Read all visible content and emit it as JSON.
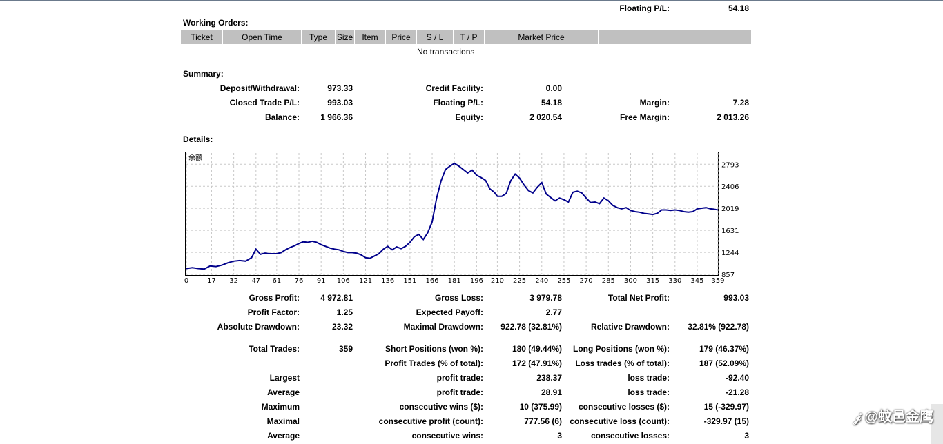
{
  "top_status": {
    "label": "Floating P/L:",
    "value": "54.18"
  },
  "working_orders": {
    "title": "Working Orders:",
    "columns": [
      "Ticket",
      "Open Time",
      "Type",
      "Size",
      "Item",
      "Price",
      "S / L",
      "T / P",
      "Market Price",
      ""
    ],
    "empty_text": "No transactions"
  },
  "summary": {
    "title": "Summary:",
    "deposit_label": "Deposit/Withdrawal:",
    "deposit_value": "973.33",
    "credit_label": "Credit Facility:",
    "credit_value": "0.00",
    "closed_pl_label": "Closed Trade P/L:",
    "closed_pl_value": "993.03",
    "floating_label": "Floating P/L:",
    "floating_value": "54.18",
    "margin_label": "Margin:",
    "margin_value": "7.28",
    "balance_label": "Balance:",
    "balance_value": "1 966.36",
    "equity_label": "Equity:",
    "equity_value": "2 020.54",
    "free_margin_label": "Free Margin:",
    "free_margin_value": "2 013.26"
  },
  "details": {
    "title": "Details:"
  },
  "chart_data": {
    "type": "line",
    "title": "余额",
    "x_ticks": [
      0,
      17,
      32,
      47,
      61,
      76,
      91,
      106,
      121,
      136,
      151,
      166,
      181,
      196,
      210,
      225,
      240,
      255,
      270,
      285,
      300,
      315,
      330,
      345,
      359
    ],
    "y_ticks": [
      857,
      1244,
      1631,
      2019,
      2406,
      2793
    ],
    "xlim": [
      0,
      359
    ],
    "ylim": [
      857,
      2990
    ],
    "grid": true,
    "color": "#00008b",
    "series": [
      {
        "x": [
          0,
          4,
          8,
          12,
          16,
          20,
          24,
          28,
          32,
          36,
          40,
          44,
          47,
          50,
          53,
          56,
          61,
          64,
          67,
          70,
          73,
          76,
          79,
          82,
          85,
          88,
          91,
          94,
          97,
          100,
          103,
          106,
          109,
          112,
          115,
          118,
          121,
          124,
          127,
          130,
          133,
          136,
          139,
          142,
          145,
          148,
          151,
          154,
          157,
          160,
          163,
          166,
          169,
          172,
          175,
          178,
          181,
          184,
          187,
          190,
          193,
          196,
          199,
          202,
          205,
          208,
          210,
          213,
          216,
          219,
          222,
          225,
          228,
          231,
          234,
          237,
          240,
          243,
          246,
          249,
          252,
          255,
          258,
          261,
          264,
          267,
          270,
          273,
          276,
          279,
          282,
          285,
          288,
          291,
          294,
          297,
          300,
          303,
          306,
          309,
          312,
          315,
          318,
          321,
          324,
          327,
          330,
          333,
          336,
          339,
          342,
          345,
          348,
          351,
          354,
          357,
          359
        ],
        "y": [
          960,
          975,
          960,
          950,
          1005,
          995,
          1020,
          1060,
          1090,
          1100,
          1090,
          1150,
          1300,
          1210,
          1230,
          1220,
          1220,
          1240,
          1290,
          1330,
          1360,
          1400,
          1430,
          1420,
          1440,
          1420,
          1380,
          1350,
          1320,
          1300,
          1290,
          1260,
          1240,
          1240,
          1230,
          1200,
          1150,
          1140,
          1180,
          1220,
          1300,
          1350,
          1290,
          1340,
          1310,
          1350,
          1420,
          1520,
          1560,
          1470,
          1590,
          1780,
          2200,
          2500,
          2700,
          2760,
          2810,
          2760,
          2700,
          2640,
          2690,
          2600,
          2560,
          2510,
          2360,
          2300,
          2230,
          2230,
          2280,
          2500,
          2620,
          2550,
          2430,
          2330,
          2290,
          2390,
          2470,
          2270,
          2210,
          2150,
          2200,
          2170,
          2130,
          2300,
          2320,
          2290,
          2200,
          2120,
          2130,
          2100,
          2200,
          2150,
          2070,
          2030,
          2010,
          2030,
          1980,
          1960,
          1950,
          1930,
          1920,
          1910,
          1930,
          1990,
          1990,
          1980,
          1990,
          1980,
          1960,
          1950,
          1960,
          2010,
          2020,
          2030,
          2010,
          2000,
          1990
        ]
      }
    ]
  },
  "stats": {
    "gross_profit_label": "Gross Profit:",
    "gross_profit_value": "4 972.81",
    "gross_loss_label": "Gross Loss:",
    "gross_loss_value": "3 979.78",
    "total_net_label": "Total Net Profit:",
    "total_net_value": "993.03",
    "profit_factor_label": "Profit Factor:",
    "profit_factor_value": "1.25",
    "expected_payoff_label": "Expected Payoff:",
    "expected_payoff_value": "2.77",
    "abs_dd_label": "Absolute Drawdown:",
    "abs_dd_value": "23.32",
    "max_dd_label": "Maximal Drawdown:",
    "max_dd_value": "922.78 (32.81%)",
    "rel_dd_label": "Relative Drawdown:",
    "rel_dd_value": "32.81% (922.78)",
    "total_trades_label": "Total Trades:",
    "total_trades_value": "359",
    "short_label": "Short Positions (won %):",
    "short_value": "180 (49.44%)",
    "long_label": "Long Positions (won %):",
    "long_value": "179 (46.37%)",
    "profit_trades_label": "Profit Trades (% of total):",
    "profit_trades_value": "172 (47.91%)",
    "loss_trades_label": "Loss trades (% of total):",
    "loss_trades_value": "187 (52.09%)",
    "largest_label": "Largest",
    "largest_profit_label": "profit trade:",
    "largest_profit_value": "238.37",
    "largest_loss_label": "loss trade:",
    "largest_loss_value": "-92.40",
    "average_label": "Average",
    "average_profit_label": "profit trade:",
    "average_profit_value": "28.91",
    "average_loss_label": "loss trade:",
    "average_loss_value": "-21.28",
    "maximum_label": "Maximum",
    "max_cons_wins_label": "consecutive wins ($):",
    "max_cons_wins_value": "10 (375.99)",
    "max_cons_losses_label": "consecutive losses ($):",
    "max_cons_losses_value": "15 (-329.97)",
    "maximal_label": "Maximal",
    "maximal_profit_label": "consecutive profit (count):",
    "maximal_profit_value": "777.56 (6)",
    "maximal_loss_label": "consecutive loss (count):",
    "maximal_loss_value": "-329.97 (15)",
    "average2_label": "Average",
    "avg_cons_wins_label": "consecutive wins:",
    "avg_cons_wins_value": "3",
    "avg_cons_losses_label": "consecutive losses:",
    "avg_cons_losses_value": "3"
  },
  "watermark": "𝒿 @蚊邑金鹰"
}
